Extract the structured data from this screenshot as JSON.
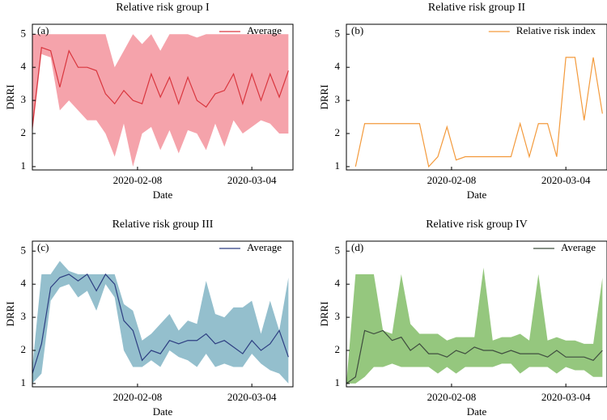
{
  "chart_data": [
    {
      "type": "line",
      "title": "Relative risk group I",
      "panel_label": "(a)",
      "xlabel": "Date",
      "ylabel": "DRRI",
      "x": [
        "2020-01-16",
        "2020-01-18",
        "2020-01-20",
        "2020-01-22",
        "2020-01-24",
        "2020-01-26",
        "2020-01-28",
        "2020-01-30",
        "2020-02-01",
        "2020-02-03",
        "2020-02-05",
        "2020-02-07",
        "2020-02-09",
        "2020-02-11",
        "2020-02-13",
        "2020-02-15",
        "2020-02-17",
        "2020-02-19",
        "2020-02-21",
        "2020-02-23",
        "2020-02-25",
        "2020-02-27",
        "2020-02-29",
        "2020-03-02",
        "2020-03-04",
        "2020-03-06",
        "2020-03-08",
        "2020-03-10",
        "2020-03-12"
      ],
      "xlim": [
        "2020-01-16",
        "2020-03-13"
      ],
      "xticks": [
        "2020-02-08",
        "2020-03-04"
      ],
      "ylim": [
        0.9,
        5.3
      ],
      "yticks": [
        1,
        2,
        3,
        4,
        5
      ],
      "legend": "upper right",
      "series": [
        {
          "name": "Average",
          "color": "#d9363e",
          "values": [
            2.2,
            4.6,
            4.5,
            3.4,
            4.5,
            4.0,
            4.0,
            3.9,
            3.2,
            2.9,
            3.3,
            3.0,
            2.9,
            3.8,
            3.1,
            3.7,
            2.9,
            3.7,
            3.0,
            2.8,
            3.2,
            3.3,
            3.8,
            2.9,
            3.8,
            3.0,
            3.8,
            3.1,
            3.9
          ]
        }
      ],
      "band": {
        "color": "#f5a3ab",
        "lower": [
          2.0,
          4.4,
          4.3,
          2.7,
          3.0,
          2.7,
          2.4,
          2.4,
          2.0,
          1.3,
          2.3,
          1.0,
          2.0,
          2.2,
          1.5,
          2.1,
          1.4,
          2.1,
          2.0,
          1.5,
          2.3,
          1.6,
          2.4,
          2.0,
          2.2,
          2.4,
          2.3,
          2.0,
          2.0
        ],
        "upper": [
          5.0,
          5.0,
          5.0,
          5.0,
          5.0,
          5.0,
          5.0,
          5.0,
          5.0,
          4.0,
          4.5,
          5.0,
          4.7,
          5.0,
          4.5,
          5.0,
          5.0,
          5.0,
          4.9,
          5.0,
          5.0,
          5.0,
          5.0,
          5.0,
          5.0,
          5.0,
          5.0,
          5.0,
          5.0
        ]
      }
    },
    {
      "type": "line",
      "title": "Relative risk group II",
      "panel_label": "(b)",
      "xlabel": "Date",
      "ylabel": "DRRI",
      "x": [
        "2020-01-16",
        "2020-01-18",
        "2020-01-20",
        "2020-01-22",
        "2020-01-24",
        "2020-01-26",
        "2020-01-28",
        "2020-01-30",
        "2020-02-01",
        "2020-02-03",
        "2020-02-05",
        "2020-02-07",
        "2020-02-09",
        "2020-02-11",
        "2020-02-13",
        "2020-02-15",
        "2020-02-17",
        "2020-02-19",
        "2020-02-21",
        "2020-02-23",
        "2020-02-25",
        "2020-02-27",
        "2020-02-29",
        "2020-03-02",
        "2020-03-04",
        "2020-03-06",
        "2020-03-08",
        "2020-03-10",
        "2020-03-12"
      ],
      "xlim": [
        "2020-01-16",
        "2020-03-13"
      ],
      "xticks": [
        "2020-02-08",
        "2020-03-04"
      ],
      "ylim": [
        0.9,
        5.3
      ],
      "yticks": [
        1,
        2,
        3,
        4,
        5
      ],
      "legend": "upper right",
      "series": [
        {
          "name": "Relative risk index",
          "color": "#f39a3c",
          "values": [
            null,
            1.0,
            2.3,
            2.3,
            2.3,
            2.3,
            2.3,
            2.3,
            2.3,
            1.0,
            1.3,
            2.2,
            1.2,
            1.3,
            1.3,
            1.3,
            1.3,
            1.3,
            1.3,
            2.3,
            1.3,
            2.3,
            2.3,
            1.3,
            4.3,
            4.3,
            2.4,
            4.3,
            2.6
          ]
        }
      ]
    },
    {
      "type": "line",
      "title": "Relative risk group III",
      "panel_label": "(c)",
      "xlabel": "Date",
      "ylabel": "DRRI",
      "x": [
        "2020-01-16",
        "2020-01-18",
        "2020-01-20",
        "2020-01-22",
        "2020-01-24",
        "2020-01-26",
        "2020-01-28",
        "2020-01-30",
        "2020-02-01",
        "2020-02-03",
        "2020-02-05",
        "2020-02-07",
        "2020-02-09",
        "2020-02-11",
        "2020-02-13",
        "2020-02-15",
        "2020-02-17",
        "2020-02-19",
        "2020-02-21",
        "2020-02-23",
        "2020-02-25",
        "2020-02-27",
        "2020-02-29",
        "2020-03-02",
        "2020-03-04",
        "2020-03-06",
        "2020-03-08",
        "2020-03-10",
        "2020-03-12"
      ],
      "xlim": [
        "2020-01-16",
        "2020-03-13"
      ],
      "xticks": [
        "2020-02-08",
        "2020-03-04"
      ],
      "ylim": [
        0.9,
        5.3
      ],
      "yticks": [
        1,
        2,
        3,
        4,
        5
      ],
      "legend": "upper right",
      "series": [
        {
          "name": "Average",
          "color": "#2e3f82",
          "values": [
            1.3,
            2.2,
            3.9,
            4.2,
            4.3,
            4.1,
            4.3,
            3.8,
            4.3,
            4.0,
            2.9,
            2.6,
            1.7,
            2.0,
            1.9,
            2.3,
            2.2,
            2.3,
            2.3,
            2.5,
            2.2,
            2.3,
            2.1,
            1.9,
            2.3,
            2.0,
            2.2,
            2.6,
            1.8
          ]
        }
      ],
      "band": {
        "color": "#94bfcd",
        "lower": [
          1.0,
          1.3,
          3.5,
          3.9,
          4.0,
          3.6,
          3.8,
          3.2,
          4.0,
          3.6,
          2.0,
          1.5,
          1.5,
          1.7,
          1.5,
          2.0,
          1.8,
          1.7,
          1.5,
          1.9,
          1.5,
          1.6,
          1.5,
          1.5,
          1.9,
          1.6,
          1.4,
          1.3,
          1.0
        ],
        "upper": [
          1.5,
          4.3,
          4.3,
          4.7,
          4.4,
          4.3,
          4.3,
          4.3,
          4.3,
          4.3,
          3.4,
          3.2,
          2.3,
          2.5,
          2.8,
          3.1,
          2.6,
          2.9,
          2.8,
          4.1,
          3.1,
          3.0,
          3.3,
          3.3,
          3.5,
          2.5,
          3.5,
          2.6,
          4.2
        ]
      }
    },
    {
      "type": "line",
      "title": "Relative risk group IV",
      "panel_label": "(d)",
      "xlabel": "Date",
      "ylabel": "DRRI",
      "x": [
        "2020-01-16",
        "2020-01-18",
        "2020-01-20",
        "2020-01-22",
        "2020-01-24",
        "2020-01-26",
        "2020-01-28",
        "2020-01-30",
        "2020-02-01",
        "2020-02-03",
        "2020-02-05",
        "2020-02-07",
        "2020-02-09",
        "2020-02-11",
        "2020-02-13",
        "2020-02-15",
        "2020-02-17",
        "2020-02-19",
        "2020-02-21",
        "2020-02-23",
        "2020-02-25",
        "2020-02-27",
        "2020-02-29",
        "2020-03-02",
        "2020-03-04",
        "2020-03-06",
        "2020-03-08",
        "2020-03-10",
        "2020-03-12"
      ],
      "xlim": [
        "2020-01-16",
        "2020-03-13"
      ],
      "xticks": [
        "2020-02-08",
        "2020-03-04"
      ],
      "ylim": [
        0.9,
        5.3
      ],
      "yticks": [
        1,
        2,
        3,
        4,
        5
      ],
      "legend": "upper right",
      "series": [
        {
          "name": "Average",
          "color": "#3f4d3f",
          "values": [
            1.0,
            1.2,
            2.6,
            2.5,
            2.6,
            2.3,
            2.4,
            2.0,
            2.2,
            1.9,
            1.9,
            1.8,
            2.0,
            1.9,
            2.1,
            2.0,
            2.0,
            1.9,
            2.0,
            1.9,
            1.9,
            1.9,
            1.8,
            2.0,
            1.8,
            1.8,
            1.8,
            1.7,
            2.0
          ]
        }
      ],
      "band": {
        "color": "#95c77e",
        "lower": [
          1.0,
          1.0,
          1.2,
          1.5,
          1.5,
          1.6,
          1.5,
          1.5,
          1.5,
          1.5,
          1.3,
          1.5,
          1.3,
          1.5,
          1.5,
          1.5,
          1.5,
          1.6,
          1.6,
          1.3,
          1.5,
          1.5,
          1.5,
          1.3,
          1.5,
          1.4,
          1.4,
          1.2,
          1.2
        ],
        "upper": [
          1.0,
          4.3,
          4.3,
          4.3,
          2.6,
          2.5,
          4.3,
          2.8,
          2.5,
          2.5,
          2.5,
          2.3,
          2.4,
          2.4,
          2.4,
          4.5,
          2.3,
          2.4,
          2.4,
          2.5,
          2.3,
          4.3,
          2.3,
          2.4,
          2.3,
          2.3,
          2.2,
          2.2,
          4.2
        ]
      }
    }
  ]
}
